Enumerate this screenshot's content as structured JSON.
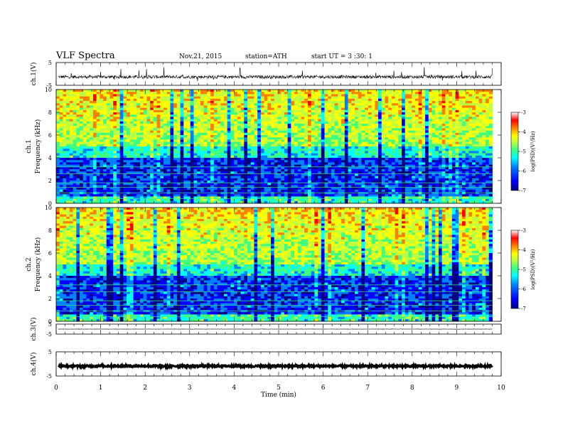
{
  "header": {
    "title": "VLF  Spectra",
    "date": "Nov.21, 2015",
    "station": "station=ATH",
    "start": "start  UT  =   3  :30: 1"
  },
  "chart_data": [
    {
      "type": "line",
      "name": "ch1-waveform",
      "ylabel": "ch.1(V)",
      "ylim": [
        -5,
        5
      ],
      "yticks": [
        "5",
        "-5"
      ],
      "xlim": [
        0,
        9.8
      ],
      "baseline": -1.3,
      "amplitude": 0.7,
      "burst_amplitude": 3.2
    },
    {
      "type": "heatmap",
      "name": "ch1-spectrogram",
      "channel_label": "ch.1",
      "ylabel": "Frequency  (kHz)",
      "ylim": [
        0,
        10
      ],
      "yticks": [
        "0",
        "2",
        "4",
        "6",
        "8",
        "10"
      ],
      "xlim": [
        0,
        9.8
      ],
      "colorbar": {
        "label": "log(PSD)(V²/Hz)",
        "range": [
          -7,
          -3
        ],
        "ticks": [
          "-3",
          "-4",
          "-5",
          "-6",
          "-7"
        ]
      }
    },
    {
      "type": "heatmap",
      "name": "ch2-spectrogram",
      "channel_label": "ch.2",
      "ylabel": "Frequency  (kHz)",
      "ylim": [
        0,
        10
      ],
      "yticks": [
        "0",
        "2",
        "4",
        "6",
        "8",
        "10"
      ],
      "xlim": [
        0,
        9.8
      ],
      "colorbar": {
        "label": "log(PSD)(V²/Hz)",
        "range": [
          -7,
          -3
        ],
        "ticks": [
          "-3",
          "-4",
          "-5",
          "-6",
          "-7"
        ]
      }
    },
    {
      "type": "line",
      "name": "ch3-waveform",
      "ylabel": "ch.3(V)",
      "ylim": [
        -5,
        5
      ],
      "yticks": [
        "5",
        "-5"
      ],
      "xlim": [
        0,
        9.8
      ],
      "baseline": 0,
      "amplitude": 0.15
    },
    {
      "type": "line",
      "name": "ch4-waveform",
      "ylabel": "ch.4(V)",
      "ylim": [
        -5,
        5
      ],
      "yticks": [
        "5",
        "-5"
      ],
      "xlim": [
        0,
        9.8
      ],
      "baseline": -0.9,
      "amplitude": 0.35
    }
  ],
  "xaxis": {
    "label": "Time  (min)",
    "range": [
      0,
      10
    ],
    "ticks": [
      "0",
      "1",
      "2",
      "3",
      "4",
      "5",
      "6",
      "7",
      "8",
      "9",
      "10"
    ]
  },
  "colors": {
    "jet": [
      "#000080",
      "#0000ff",
      "#0080ff",
      "#00ffff",
      "#40ff80",
      "#c0ff40",
      "#ffff00",
      "#ff8000",
      "#ff0000",
      "#ffffff"
    ],
    "line": "#000000"
  }
}
